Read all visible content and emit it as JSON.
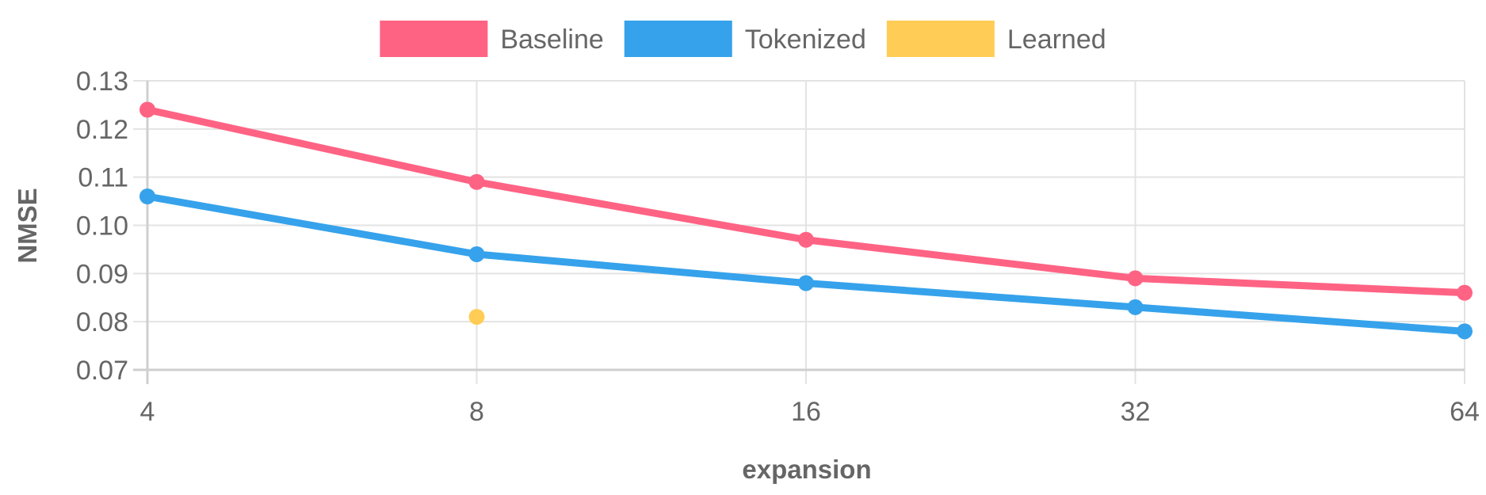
{
  "chart_data": {
    "type": "line",
    "title": "",
    "xlabel": "expansion",
    "ylabel": "NMSE",
    "x_scale": "log2",
    "categories": [
      "4",
      "8",
      "16",
      "32",
      "64"
    ],
    "x": [
      4,
      8,
      16,
      32,
      64
    ],
    "ylim": [
      0.07,
      0.13
    ],
    "yticks": [
      "0.13",
      "0.12",
      "0.11",
      "0.10",
      "0.09",
      "0.08",
      "0.07"
    ],
    "grid": true,
    "legend_position": "top-center",
    "series": [
      {
        "name": "Baseline",
        "color": "#ff6384",
        "x": [
          4,
          8,
          16,
          32,
          64
        ],
        "values": [
          0.124,
          0.109,
          0.097,
          0.089,
          0.086
        ]
      },
      {
        "name": "Tokenized",
        "color": "#36a2eb",
        "x": [
          4,
          8,
          16,
          32,
          64
        ],
        "values": [
          0.106,
          0.094,
          0.088,
          0.083,
          0.078
        ]
      },
      {
        "name": "Learned",
        "color": "#ffcd56",
        "x": [
          8
        ],
        "values": [
          0.081
        ]
      }
    ]
  }
}
